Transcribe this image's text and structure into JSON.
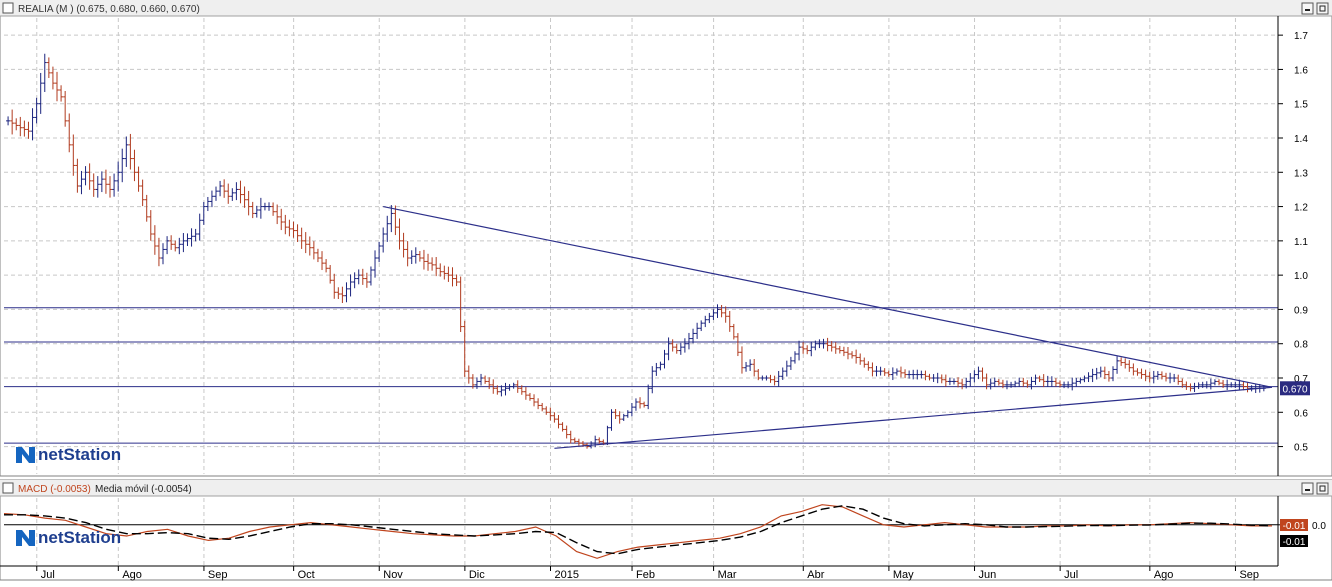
{
  "main_panel": {
    "header_label": "REALIA (M ) (0.675, 0.680, 0.660, 0.670)",
    "last_price_label": "0.670",
    "watermark": "netStation"
  },
  "macd_panel": {
    "macd_label": "MACD (-0.0053)",
    "signal_label": "Media móvil (-0.0054)",
    "macd_value_label": "-0.01",
    "signal_value_label": "-0.01",
    "watermark": "netStation"
  },
  "colors": {
    "up_bar": "#1a237e",
    "down_bar": "#b03a1e",
    "trend_line": "#2c2f8a",
    "macd_line": "#c0451e",
    "signal_line": "#000000",
    "grid": "#c8c8c8",
    "price_badge": "#2a2a80"
  },
  "chart_data": [
    {
      "type": "ohlc",
      "title": "REALIA (M )",
      "last_bar": {
        "open": 0.675,
        "high": 0.68,
        "low": 0.66,
        "close": 0.67
      },
      "ylim": [
        0.42,
        1.75
      ],
      "y_ticks": [
        0.5,
        0.6,
        0.7,
        0.8,
        0.9,
        1.0,
        1.1,
        1.2,
        1.3,
        1.4,
        1.5,
        1.6,
        1.7
      ],
      "x_tick_labels": [
        "Jul",
        "Ago",
        "Sep",
        "Oct",
        "Nov",
        "Dic",
        "2015",
        "Feb",
        "Mar",
        "Abr",
        "May",
        "Jun",
        "Jul",
        "Ago",
        "Sep"
      ],
      "grid": true,
      "close_anchors": [
        [
          0,
          1.45
        ],
        [
          3,
          1.43
        ],
        [
          5,
          1.42
        ],
        [
          7,
          1.5
        ],
        [
          9,
          1.62
        ],
        [
          11,
          1.56
        ],
        [
          13,
          1.52
        ],
        [
          15,
          1.38
        ],
        [
          17,
          1.26
        ],
        [
          19,
          1.3
        ],
        [
          21,
          1.25
        ],
        [
          23,
          1.28
        ],
        [
          25,
          1.25
        ],
        [
          27,
          1.3
        ],
        [
          29,
          1.38
        ],
        [
          31,
          1.3
        ],
        [
          33,
          1.22
        ],
        [
          35,
          1.12
        ],
        [
          37,
          1.05
        ],
        [
          39,
          1.1
        ],
        [
          41,
          1.08
        ],
        [
          43,
          1.1
        ],
        [
          46,
          1.12
        ],
        [
          48,
          1.2
        ],
        [
          50,
          1.23
        ],
        [
          52,
          1.26
        ],
        [
          54,
          1.23
        ],
        [
          56,
          1.25
        ],
        [
          58,
          1.22
        ],
        [
          60,
          1.18
        ],
        [
          62,
          1.2
        ],
        [
          64,
          1.2
        ],
        [
          66,
          1.17
        ],
        [
          68,
          1.14
        ],
        [
          70,
          1.13
        ],
        [
          72,
          1.1
        ],
        [
          74,
          1.08
        ],
        [
          76,
          1.05
        ],
        [
          78,
          1.02
        ],
        [
          80,
          0.95
        ],
        [
          82,
          0.94
        ],
        [
          84,
          0.98
        ],
        [
          86,
          1.0
        ],
        [
          88,
          0.98
        ],
        [
          90,
          1.05
        ],
        [
          92,
          1.12
        ],
        [
          94,
          1.18
        ],
        [
          96,
          1.1
        ],
        [
          98,
          1.05
        ],
        [
          100,
          1.06
        ],
        [
          102,
          1.04
        ],
        [
          104,
          1.03
        ],
        [
          106,
          1.01
        ],
        [
          108,
          1.0
        ],
        [
          110,
          0.98
        ],
        [
          112,
          0.72
        ],
        [
          114,
          0.68
        ],
        [
          116,
          0.7
        ],
        [
          118,
          0.68
        ],
        [
          120,
          0.66
        ],
        [
          122,
          0.67
        ],
        [
          124,
          0.68
        ],
        [
          126,
          0.66
        ],
        [
          128,
          0.64
        ],
        [
          130,
          0.62
        ],
        [
          132,
          0.6
        ],
        [
          134,
          0.58
        ],
        [
          136,
          0.55
        ],
        [
          138,
          0.52
        ],
        [
          140,
          0.51
        ],
        [
          142,
          0.5
        ],
        [
          144,
          0.52
        ],
        [
          146,
          0.51
        ],
        [
          148,
          0.6
        ],
        [
          150,
          0.58
        ],
        [
          152,
          0.6
        ],
        [
          154,
          0.63
        ],
        [
          156,
          0.62
        ],
        [
          158,
          0.72
        ],
        [
          160,
          0.74
        ],
        [
          162,
          0.8
        ],
        [
          164,
          0.78
        ],
        [
          166,
          0.8
        ],
        [
          168,
          0.83
        ],
        [
          170,
          0.86
        ],
        [
          172,
          0.88
        ],
        [
          174,
          0.9
        ],
        [
          176,
          0.88
        ],
        [
          178,
          0.82
        ],
        [
          180,
          0.73
        ],
        [
          182,
          0.74
        ],
        [
          184,
          0.7
        ],
        [
          186,
          0.7
        ],
        [
          188,
          0.69
        ],
        [
          190,
          0.72
        ],
        [
          192,
          0.75
        ],
        [
          194,
          0.79
        ],
        [
          196,
          0.78
        ],
        [
          198,
          0.8
        ],
        [
          200,
          0.8
        ],
        [
          202,
          0.79
        ],
        [
          204,
          0.78
        ],
        [
          206,
          0.77
        ],
        [
          208,
          0.76
        ],
        [
          210,
          0.74
        ],
        [
          212,
          0.72
        ],
        [
          214,
          0.72
        ],
        [
          216,
          0.71
        ],
        [
          218,
          0.72
        ],
        [
          220,
          0.71
        ],
        [
          222,
          0.71
        ],
        [
          224,
          0.71
        ],
        [
          226,
          0.7
        ],
        [
          228,
          0.7
        ],
        [
          230,
          0.69
        ],
        [
          232,
          0.69
        ],
        [
          234,
          0.68
        ],
        [
          236,
          0.7
        ],
        [
          238,
          0.72
        ],
        [
          240,
          0.68
        ],
        [
          242,
          0.69
        ],
        [
          244,
          0.68
        ],
        [
          246,
          0.68
        ],
        [
          248,
          0.69
        ],
        [
          250,
          0.68
        ],
        [
          252,
          0.7
        ],
        [
          254,
          0.69
        ],
        [
          256,
          0.69
        ],
        [
          258,
          0.68
        ],
        [
          260,
          0.68
        ],
        [
          262,
          0.69
        ],
        [
          264,
          0.7
        ],
        [
          266,
          0.71
        ],
        [
          268,
          0.72
        ],
        [
          270,
          0.7
        ],
        [
          272,
          0.75
        ],
        [
          274,
          0.74
        ],
        [
          276,
          0.72
        ],
        [
          278,
          0.71
        ],
        [
          280,
          0.7
        ],
        [
          282,
          0.71
        ],
        [
          284,
          0.7
        ],
        [
          286,
          0.7
        ],
        [
          288,
          0.68
        ],
        [
          290,
          0.67
        ],
        [
          292,
          0.68
        ],
        [
          294,
          0.68
        ],
        [
          296,
          0.69
        ],
        [
          298,
          0.68
        ],
        [
          300,
          0.68
        ],
        [
          302,
          0.68
        ],
        [
          304,
          0.67
        ],
        [
          306,
          0.67
        ],
        [
          308,
          0.67
        ]
      ],
      "horizontal_lines": [
        0.905,
        0.805,
        0.675,
        0.51
      ],
      "trend_lines": [
        {
          "from": [
            92,
            1.2
          ],
          "to": [
            310,
            0.673
          ]
        },
        {
          "from": [
            134,
            0.495
          ],
          "to": [
            310,
            0.673
          ]
        }
      ]
    },
    {
      "type": "line",
      "title": "MACD",
      "series": [
        {
          "name": "MACD (-0.0053)",
          "values": [
            0.05,
            0.045,
            0.03,
            0.02,
            -0.01,
            -0.04,
            -0.05,
            -0.03,
            -0.02,
            -0.05,
            -0.07,
            -0.06,
            -0.03,
            -0.01,
            0.0,
            0.01,
            0.0,
            -0.01,
            -0.02,
            -0.03,
            -0.04,
            -0.045,
            -0.05,
            -0.05,
            -0.04,
            -0.03,
            -0.01,
            -0.05,
            -0.12,
            -0.15,
            -0.12,
            -0.1,
            -0.09,
            -0.08,
            -0.07,
            -0.06,
            -0.04,
            -0.01,
            0.04,
            0.06,
            0.09,
            0.08,
            0.04,
            0.0,
            -0.01,
            0.0,
            0.01,
            0.0,
            -0.01,
            -0.01,
            -0.01,
            -0.005,
            -0.005,
            0.0,
            -0.005,
            0.0,
            0.0,
            0.005,
            0.01,
            0.005,
            0.0,
            -0.005,
            -0.005
          ]
        },
        {
          "name": "Media móvil (-0.0054)",
          "values": [
            0.045,
            0.045,
            0.04,
            0.03,
            0.01,
            -0.02,
            -0.04,
            -0.04,
            -0.035,
            -0.04,
            -0.06,
            -0.065,
            -0.05,
            -0.03,
            -0.01,
            0.005,
            0.005,
            0.0,
            -0.01,
            -0.02,
            -0.03,
            -0.04,
            -0.045,
            -0.05,
            -0.045,
            -0.04,
            -0.03,
            -0.035,
            -0.08,
            -0.12,
            -0.13,
            -0.11,
            -0.1,
            -0.09,
            -0.08,
            -0.07,
            -0.055,
            -0.03,
            0.01,
            0.04,
            0.07,
            0.085,
            0.07,
            0.03,
            0.005,
            -0.005,
            0.0,
            0.005,
            0.0,
            -0.01,
            -0.01,
            -0.008,
            -0.006,
            -0.003,
            -0.004,
            -0.002,
            -0.001,
            0.003,
            0.007,
            0.007,
            0.003,
            -0.002,
            -0.005
          ]
        }
      ],
      "y_ticks": [
        0.0
      ],
      "ylim": [
        -0.18,
        0.12
      ]
    }
  ]
}
